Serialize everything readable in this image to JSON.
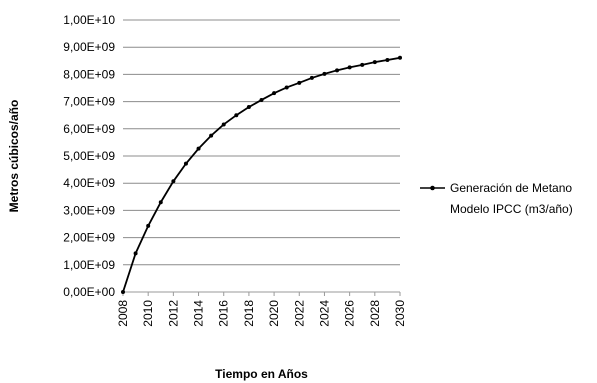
{
  "chart_data": {
    "type": "line",
    "title": "",
    "xlabel": "Tiempo en Años",
    "ylabel": "Metros cúbicos/año",
    "xlim": [
      2008,
      2030
    ],
    "ylim": [
      0,
      10000000000
    ],
    "x_ticks": [
      "2008",
      "2010",
      "2012",
      "2014",
      "2016",
      "2018",
      "2020",
      "2022",
      "2024",
      "2026",
      "2028",
      "2030"
    ],
    "y_ticks": [
      "0,00E+00",
      "1,00E+09",
      "2,00E+09",
      "3,00E+09",
      "4,00E+09",
      "5,00E+09",
      "6,00E+09",
      "7,00E+09",
      "8,00E+09",
      "9,00E+09",
      "1,00E+10"
    ],
    "grid": "horizontal",
    "legend_position": "right",
    "series": [
      {
        "name": "Generación de Metano Modelo IPCC (m3/año)",
        "legend_lines": [
          "Generación de Metano",
          "Modelo IPCC (m3/año)"
        ],
        "color": "#000000",
        "marker": "circle",
        "x": [
          2008,
          2009,
          2010,
          2011,
          2012,
          2013,
          2014,
          2015,
          2016,
          2017,
          2018,
          2019,
          2020,
          2021,
          2022,
          2023,
          2024,
          2025,
          2026,
          2027,
          2028,
          2029,
          2030
        ],
        "values": [
          0,
          1420000000,
          2430000000,
          3300000000,
          4070000000,
          4720000000,
          5270000000,
          5750000000,
          6160000000,
          6500000000,
          6800000000,
          7060000000,
          7310000000,
          7520000000,
          7690000000,
          7870000000,
          8020000000,
          8150000000,
          8260000000,
          8350000000,
          8450000000,
          8530000000,
          8610000000
        ]
      }
    ]
  }
}
